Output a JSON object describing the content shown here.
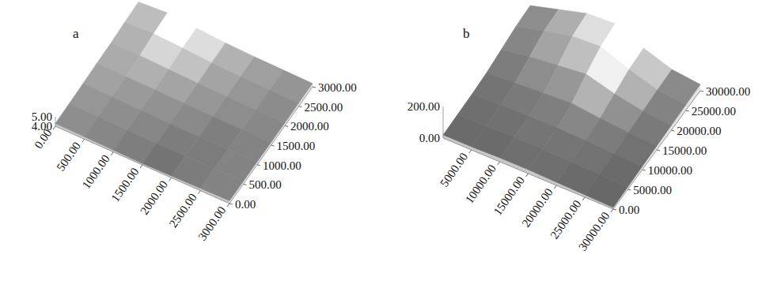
{
  "chart_data": [
    {
      "type": "surface",
      "label": "a",
      "x": [
        0,
        500,
        1000,
        1500,
        2000,
        2500,
        3000
      ],
      "y": [
        0,
        500,
        1000,
        1500,
        2000,
        2500,
        3000
      ],
      "values": [
        [
          4.3,
          4.35,
          4.4,
          4.5,
          4.55,
          4.7,
          4.8
        ],
        [
          4.25,
          4.3,
          4.35,
          4.45,
          4.6,
          4.85,
          5.0
        ],
        [
          4.2,
          4.25,
          4.3,
          4.4,
          4.5,
          4.7,
          4.75
        ],
        [
          4.15,
          4.2,
          4.25,
          4.35,
          4.4,
          4.5,
          4.55
        ],
        [
          4.2,
          4.25,
          4.2,
          4.3,
          4.35,
          4.4,
          4.45
        ],
        [
          4.25,
          4.3,
          4.25,
          4.3,
          4.3,
          4.35,
          4.4
        ],
        [
          4.3,
          4.3,
          4.3,
          4.3,
          4.3,
          4.35,
          4.35
        ]
      ],
      "xlim": [
        0,
        3000
      ],
      "ylim": [
        0,
        3000
      ],
      "zlim": [
        4,
        5
      ],
      "xticks": [
        {
          "value": 0,
          "label": "0.00"
        },
        {
          "value": 500,
          "label": "500.00"
        },
        {
          "value": 1000,
          "label": "1000.00"
        },
        {
          "value": 1500,
          "label": "1500.00"
        },
        {
          "value": 2000,
          "label": "2000.00"
        },
        {
          "value": 2500,
          "label": "2500.00"
        },
        {
          "value": 3000,
          "label": "3000.00"
        }
      ],
      "yticks": [
        {
          "value": 0,
          "label": "0.00"
        },
        {
          "value": 500,
          "label": "500.00"
        },
        {
          "value": 1000,
          "label": "1000.00"
        },
        {
          "value": 1500,
          "label": "1500.00"
        },
        {
          "value": 2000,
          "label": "2000.00"
        },
        {
          "value": 2500,
          "label": "2500.00"
        },
        {
          "value": 3000,
          "label": "3000.00"
        }
      ],
      "zticks": [
        {
          "value": 4,
          "label": "4.00"
        },
        {
          "value": 5,
          "label": "5.00"
        }
      ]
    },
    {
      "type": "surface",
      "label": "b",
      "x": [
        0,
        5000,
        10000,
        15000,
        20000,
        25000,
        30000
      ],
      "y": [
        0,
        5000,
        10000,
        15000,
        20000,
        25000,
        30000
      ],
      "values": [
        [
          20,
          25,
          30,
          40,
          60,
          80,
          90
        ],
        [
          20,
          25,
          35,
          50,
          90,
          130,
          140
        ],
        [
          25,
          30,
          40,
          60,
          110,
          170,
          190
        ],
        [
          25,
          30,
          40,
          70,
          130,
          180,
          200
        ],
        [
          20,
          25,
          35,
          50,
          80,
          110,
          120
        ],
        [
          15,
          20,
          25,
          35,
          45,
          55,
          60
        ],
        [
          10,
          15,
          20,
          25,
          30,
          35,
          40
        ]
      ],
      "xlim": [
        0,
        30000
      ],
      "ylim": [
        0,
        30000
      ],
      "zlim": [
        0,
        200
      ],
      "xticks": [
        {
          "value": 5000,
          "label": "5000.00"
        },
        {
          "value": 10000,
          "label": "10000.00"
        },
        {
          "value": 15000,
          "label": "15000.00"
        },
        {
          "value": 20000,
          "label": "20000.00"
        },
        {
          "value": 25000,
          "label": "25000.00"
        },
        {
          "value": 30000,
          "label": "30000.00"
        }
      ],
      "yticks": [
        {
          "value": 0,
          "label": "0.00"
        },
        {
          "value": 5000,
          "label": "5000.00"
        },
        {
          "value": 10000,
          "label": "10000.00"
        },
        {
          "value": 15000,
          "label": "15000.00"
        },
        {
          "value": 20000,
          "label": "20000.00"
        },
        {
          "value": 25000,
          "label": "25000.00"
        },
        {
          "value": 30000,
          "label": "30000.00"
        }
      ],
      "zticks": [
        {
          "value": 0,
          "label": "0.00"
        },
        {
          "value": 200,
          "label": "200.00"
        }
      ]
    }
  ]
}
